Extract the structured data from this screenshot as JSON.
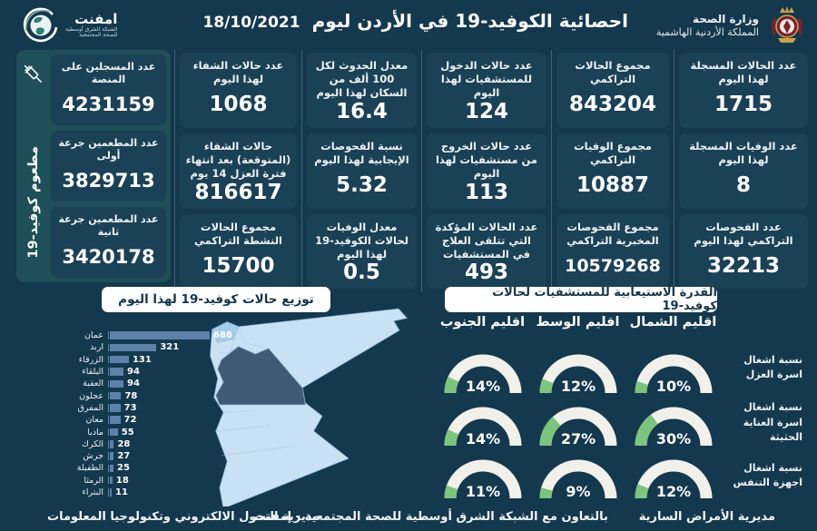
{
  "header": {
    "title": "احصائية الكوفيد-19 في الأردن ليوم",
    "date": "18/10/2021",
    "ministry": {
      "name": "وزارة الصحة",
      "country": "المملكة الأردنية الهاشمية"
    },
    "emphnet": {
      "name": "امفنت",
      "sub1": "الشبكة الشرق أوسطية",
      "sub2": "للصحة المجتمعية"
    }
  },
  "vaccination": {
    "side_label": "مطعوم كوفيد-19",
    "boxes": [
      {
        "label": "عدد المسجلين على المنصة",
        "value": "4231159"
      },
      {
        "label": "عدد المطعمين جرعة أولى",
        "value": "3829713"
      },
      {
        "label": "عدد المطعمين جرعة ثانية",
        "value": "3420178"
      }
    ]
  },
  "stats": {
    "columns": [
      [
        {
          "label": "عدد الحالات المسجلة لهذا اليوم",
          "value": "1715"
        },
        {
          "label": "عدد الوفيات المسجلة لهذا اليوم",
          "value": "8"
        },
        {
          "label": "عدد الفحوصات التراكمي لهذا اليوم",
          "value": "32213"
        }
      ],
      [
        {
          "label": "مجموع الحالات التراكمي",
          "value": "843204"
        },
        {
          "label": "مجموع الوفيات التراكمي",
          "value": "10887"
        },
        {
          "label": "مجموع الفحوصات المخبرية التراكمي",
          "value": "10579268"
        }
      ],
      [
        {
          "label": "عدد حالات الدخول للمستشفيات لهذا اليوم",
          "value": "124"
        },
        {
          "label": "عدد حالات الخروج من مستشفيات لهذا اليوم",
          "value": "113"
        },
        {
          "label": "عدد الحالات المؤكدة التي تتلقى العلاج في المستشفيات",
          "value": "493"
        }
      ],
      [
        {
          "label": "معدل الحدوث لكل 100 ألف من السكان لهذا اليوم",
          "value": "16.4"
        },
        {
          "label": "نسبة الفحوصات الإيجابية لهذا اليوم",
          "value": "5.32"
        },
        {
          "label": "معدل الوفيات لحالات الكوفيد-19 لهذا اليوم",
          "value": "0.5"
        }
      ],
      [
        {
          "label": "عدد حالات الشفاء لهذا اليوم",
          "value": "1068"
        },
        {
          "label": "حالات الشفاء (المتوقعة) بعد انتهاء فترة العزل 14 يوم",
          "value": "816617"
        },
        {
          "label": "مجموع الحالات النشطة التراكمي",
          "value": "15700"
        }
      ]
    ]
  },
  "chart_data": [
    {
      "type": "bar",
      "title": "توزيع حالات كوفيد-19 لهذا اليوم",
      "orientation": "horizontal",
      "categories": [
        "عمان",
        "اربد",
        "الزرقاء",
        "البلقاء",
        "العقبة",
        "عجلون",
        "المفرق",
        "معان",
        "مادبا",
        "الكرك",
        "جرش",
        "الطفيلة",
        "الرمثا",
        "البتراء"
      ],
      "values": [
        688,
        321,
        131,
        94,
        94,
        78,
        73,
        72,
        55,
        28,
        27,
        25,
        18,
        11
      ],
      "xlim": [
        0,
        688
      ],
      "legend": "none",
      "grid": false
    },
    {
      "type": "gauge",
      "title": "القدرة الاستيعابية للمستشفيات لحالات كوفيد-19",
      "columns": [
        "اقليم الشمال",
        "اقليم الوسط",
        "اقليم الجنوب"
      ],
      "rows": [
        {
          "label": "نسبة اشغال اسرة العزل",
          "values_pct": [
            10,
            12,
            14
          ]
        },
        {
          "label": "نسبة اشغال اسرة العناية الحثيثة",
          "values_pct": [
            30,
            27,
            14
          ]
        },
        {
          "label": "نسبة اشغال اجهزة التنفس",
          "values_pct": [
            12,
            9,
            11
          ]
        }
      ],
      "unit": "%"
    }
  ],
  "footer": {
    "right": "مديرية الأمراض السارية",
    "center": "بالتعاون مع الشبكة الشرق أوسطية للصحة المجتمعية - إمفنت",
    "left": "مديرية التحول الالكتروني وتكنولوجيا المعلومات"
  },
  "colors": {
    "background": "#14384E",
    "tile": "#1B4156",
    "teal_panel": "#1F4F58",
    "bar": "#5D81A8",
    "gauge_fill": "#7CC47E",
    "gauge_track": "#F1F0EA",
    "map_light": "#C9E1F5",
    "map_amman": "#3E5B76",
    "map_irbid": "#A6CCEC"
  }
}
